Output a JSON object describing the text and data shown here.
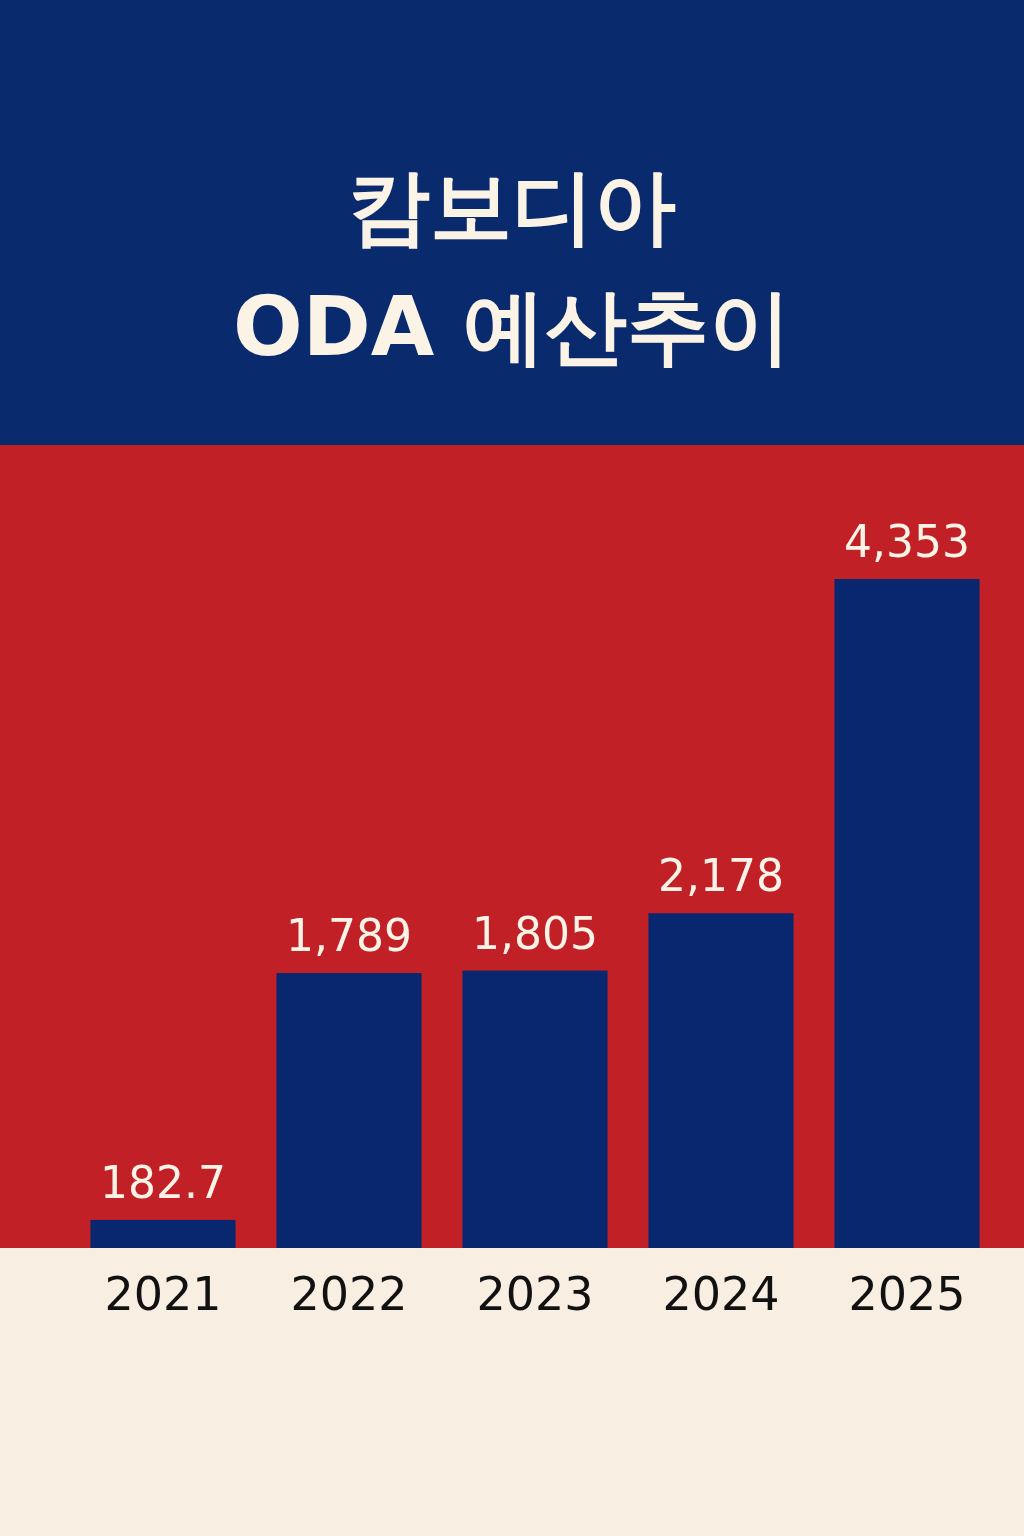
{
  "chart_data": {
    "type": "bar",
    "title": "캄보디아\nODA 예산추이",
    "categories": [
      "2021",
      "2022",
      "2023",
      "2024",
      "2025"
    ],
    "values": [
      182.7,
      1789,
      1805,
      2178,
      4353
    ],
    "value_labels": [
      "182.7",
      "1,789",
      "1,805",
      "2,178",
      "4,353"
    ],
    "color": "#08276e"
  }
}
